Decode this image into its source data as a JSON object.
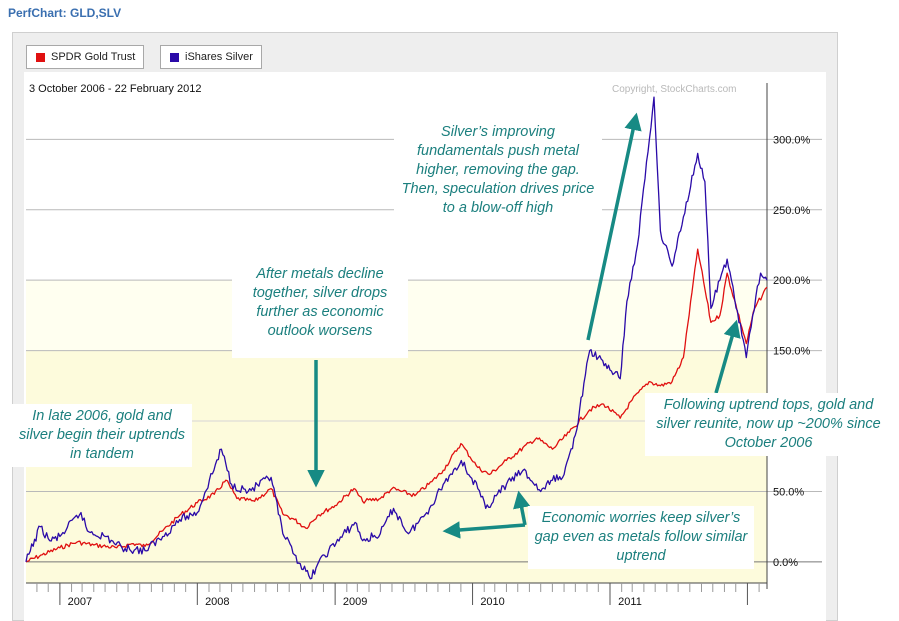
{
  "page": {
    "title": "PerfChart: GLD,SLV"
  },
  "colors": {
    "gold": "#e01010",
    "silver": "#2a0aa8",
    "annotation": "#1b7f7e",
    "arrow": "#178a84"
  },
  "chart_data": {
    "type": "line",
    "date_range": "3 October 2006 - 22 February 2012",
    "copyright": "Copyright, StockCharts.com",
    "xlim": [
      "2006-10-03",
      "2012-02-22"
    ],
    "ylim": [
      -15,
      340
    ],
    "y_ticks": [
      0,
      50,
      150,
      200,
      250,
      300
    ],
    "y_tick_labels": [
      "0.0%",
      "50.0%",
      "150.0%",
      "200.0%",
      "250.0%",
      "300.0%"
    ],
    "x_labels": [
      {
        "label": "2007",
        "x": "2007-01-01"
      },
      {
        "label": "2008",
        "x": "2008-01-01"
      },
      {
        "label": "2009",
        "x": "2009-01-01"
      },
      {
        "label": "2010",
        "x": "2010-01-01"
      },
      {
        "label": "2011",
        "x": "2011-01-01"
      }
    ],
    "legend": [
      {
        "name": "SPDR Gold Trust",
        "color": "#e01010"
      },
      {
        "name": "iShares Silver",
        "color": "#2a0aa8"
      }
    ],
    "series": [
      {
        "name": "SPDR Gold Trust",
        "color": "#e01010",
        "points": [
          [
            "2006-10-03",
            0
          ],
          [
            "2006-11-15",
            5
          ],
          [
            "2007-01-01",
            10
          ],
          [
            "2007-02-15",
            14
          ],
          [
            "2007-04-01",
            12
          ],
          [
            "2007-06-01",
            10
          ],
          [
            "2007-07-15",
            13
          ],
          [
            "2007-08-15",
            11
          ],
          [
            "2007-10-01",
            22
          ],
          [
            "2007-11-15",
            33
          ],
          [
            "2008-01-01",
            42
          ],
          [
            "2008-02-15",
            48
          ],
          [
            "2008-03-17",
            58
          ],
          [
            "2008-04-15",
            45
          ],
          [
            "2008-06-01",
            43
          ],
          [
            "2008-07-15",
            52
          ],
          [
            "2008-08-15",
            34
          ],
          [
            "2008-09-15",
            30
          ],
          [
            "2008-10-15",
            24
          ],
          [
            "2008-11-15",
            33
          ],
          [
            "2009-01-01",
            40
          ],
          [
            "2009-02-20",
            52
          ],
          [
            "2009-03-15",
            43
          ],
          [
            "2009-05-01",
            45
          ],
          [
            "2009-06-01",
            52
          ],
          [
            "2009-08-01",
            47
          ],
          [
            "2009-09-15",
            57
          ],
          [
            "2009-10-15",
            65
          ],
          [
            "2009-12-01",
            84
          ],
          [
            "2010-01-15",
            67
          ],
          [
            "2010-02-15",
            62
          ],
          [
            "2010-04-01",
            72
          ],
          [
            "2010-06-20",
            88
          ],
          [
            "2010-08-01",
            80
          ],
          [
            "2010-09-15",
            92
          ],
          [
            "2010-11-08",
            108
          ],
          [
            "2010-12-15",
            112
          ],
          [
            "2011-01-28",
            102
          ],
          [
            "2011-03-01",
            115
          ],
          [
            "2011-04-15",
            128
          ],
          [
            "2011-05-15",
            125
          ],
          [
            "2011-06-15",
            128
          ],
          [
            "2011-07-15",
            145
          ],
          [
            "2011-08-22",
            222
          ],
          [
            "2011-09-26",
            170
          ],
          [
            "2011-10-20",
            175
          ],
          [
            "2011-11-08",
            205
          ],
          [
            "2011-12-29",
            155
          ],
          [
            "2012-01-20",
            180
          ],
          [
            "2012-02-22",
            195
          ]
        ]
      },
      {
        "name": "iShares Silver",
        "color": "#2a0aa8",
        "points": [
          [
            "2006-10-03",
            0
          ],
          [
            "2006-11-10",
            25
          ],
          [
            "2006-12-05",
            15
          ],
          [
            "2007-01-01",
            18
          ],
          [
            "2007-02-26",
            35
          ],
          [
            "2007-03-15",
            22
          ],
          [
            "2007-05-01",
            18
          ],
          [
            "2007-06-15",
            10
          ],
          [
            "2007-08-15",
            8
          ],
          [
            "2007-10-01",
            18
          ],
          [
            "2007-11-15",
            30
          ],
          [
            "2008-01-01",
            35
          ],
          [
            "2008-03-05",
            80
          ],
          [
            "2008-04-01",
            55
          ],
          [
            "2008-05-15",
            50
          ],
          [
            "2008-07-15",
            60
          ],
          [
            "2008-08-15",
            20
          ],
          [
            "2008-09-15",
            5
          ],
          [
            "2008-10-27",
            -12
          ],
          [
            "2008-11-15",
            -2
          ],
          [
            "2008-12-15",
            8
          ],
          [
            "2009-02-23",
            28
          ],
          [
            "2009-03-15",
            15
          ],
          [
            "2009-05-01",
            20
          ],
          [
            "2009-06-05",
            38
          ],
          [
            "2009-07-15",
            20
          ],
          [
            "2009-09-01",
            35
          ],
          [
            "2009-10-15",
            55
          ],
          [
            "2009-12-02",
            72
          ],
          [
            "2010-01-15",
            52
          ],
          [
            "2010-02-05",
            38
          ],
          [
            "2010-04-01",
            55
          ],
          [
            "2010-05-15",
            65
          ],
          [
            "2010-07-01",
            50
          ],
          [
            "2010-08-01",
            58
          ],
          [
            "2010-09-01",
            62
          ],
          [
            "2010-10-01",
            90
          ],
          [
            "2010-11-08",
            150
          ],
          [
            "2010-12-01",
            145
          ],
          [
            "2011-01-28",
            130
          ],
          [
            "2011-02-15",
            185
          ],
          [
            "2011-03-15",
            225
          ],
          [
            "2011-04-28",
            330
          ],
          [
            "2011-05-15",
            235
          ],
          [
            "2011-06-15",
            210
          ],
          [
            "2011-07-15",
            245
          ],
          [
            "2011-08-22",
            290
          ],
          [
            "2011-09-10",
            270
          ],
          [
            "2011-09-26",
            180
          ],
          [
            "2011-10-20",
            200
          ],
          [
            "2011-11-08",
            215
          ],
          [
            "2011-12-29",
            145
          ],
          [
            "2012-01-15",
            175
          ],
          [
            "2012-02-05",
            205
          ],
          [
            "2012-02-22",
            200
          ]
        ]
      }
    ]
  },
  "annotations": [
    {
      "id": "silver-fundamentals",
      "text": "Silver’s improving fundamentals push metal higher, removing the gap. Then, speculation drives price to a blow-off high"
    },
    {
      "id": "decline",
      "text": "After metals decline together, silver drops further as economic outlook worsens"
    },
    {
      "id": "late-2006",
      "text": "In late 2006, gold and silver begin their uptrends in tandem"
    },
    {
      "id": "reunite",
      "text": "Following uptrend tops, gold and silver reunite, now up ~200% since October 2006"
    },
    {
      "id": "worries",
      "text": "Economic worries keep silver’s gap even as metals follow similar uptrend"
    }
  ]
}
